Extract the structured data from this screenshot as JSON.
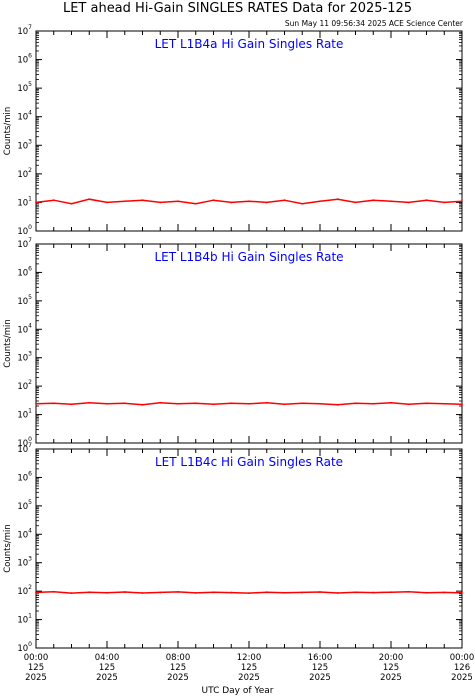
{
  "figure": {
    "title": "LET ahead Hi-Gain SINGLES RATES Data for 2025-125",
    "timestamp": "Sun May 11 09:56:34 2025 ACE Science Center",
    "xlabel": "UTC Day of Year",
    "x_ticks": [
      {
        "time": "00:00",
        "doy": "125",
        "year": "2025"
      },
      {
        "time": "04:00",
        "doy": "125",
        "year": "2025"
      },
      {
        "time": "08:00",
        "doy": "125",
        "year": "2025"
      },
      {
        "time": "12:00",
        "doy": "125",
        "year": "2025"
      },
      {
        "time": "16:00",
        "doy": "125",
        "year": "2025"
      },
      {
        "time": "20:00",
        "doy": "125",
        "year": "2025"
      },
      {
        "time": "00:00",
        "doy": "126",
        "year": "2025"
      }
    ]
  },
  "chart_data": [
    {
      "type": "line",
      "title": "LET L1B4a Hi Gain Singles Rate",
      "ylabel": "Counts/min",
      "yscale": "log",
      "ylim": [
        1,
        10000000
      ],
      "xlim_hours": [
        0,
        24
      ],
      "color": "#ff0000",
      "title_color": "#0000ff",
      "x": [
        0,
        1,
        2,
        3,
        4,
        5,
        6,
        7,
        8,
        9,
        10,
        11,
        12,
        13,
        14,
        15,
        16,
        17,
        18,
        19,
        20,
        21,
        22,
        23,
        24
      ],
      "values": [
        10,
        12,
        9,
        13,
        10,
        11,
        12,
        10,
        11,
        9,
        12,
        10,
        11,
        10,
        12,
        9,
        11,
        13,
        10,
        12,
        11,
        10,
        12,
        10,
        11
      ]
    },
    {
      "type": "line",
      "title": "LET L1B4b Hi Gain Singles Rate",
      "ylabel": "Counts/min",
      "yscale": "log",
      "ylim": [
        1,
        10000000
      ],
      "xlim_hours": [
        0,
        24
      ],
      "color": "#ff0000",
      "title_color": "#0000ff",
      "x": [
        0,
        1,
        2,
        3,
        4,
        5,
        6,
        7,
        8,
        9,
        10,
        11,
        12,
        13,
        14,
        15,
        16,
        17,
        18,
        19,
        20,
        21,
        22,
        23,
        24
      ],
      "values": [
        24,
        25,
        23,
        26,
        24,
        25,
        22,
        26,
        24,
        25,
        23,
        25,
        24,
        26,
        23,
        25,
        24,
        22,
        25,
        24,
        26,
        23,
        25,
        24,
        23
      ]
    },
    {
      "type": "line",
      "title": "LET L1B4c Hi Gain Singles Rate",
      "ylabel": "Counts/min",
      "yscale": "log",
      "ylim": [
        1,
        10000000
      ],
      "xlim_hours": [
        0,
        24
      ],
      "color": "#ff0000",
      "title_color": "#0000ff",
      "x": [
        0,
        1,
        2,
        3,
        4,
        5,
        6,
        7,
        8,
        9,
        10,
        11,
        12,
        13,
        14,
        15,
        16,
        17,
        18,
        19,
        20,
        21,
        22,
        23,
        24
      ],
      "values": [
        90,
        95,
        85,
        92,
        88,
        93,
        86,
        90,
        94,
        87,
        91,
        89,
        85,
        92,
        88,
        90,
        93,
        86,
        91,
        89,
        92,
        95,
        88,
        90,
        87
      ]
    }
  ]
}
